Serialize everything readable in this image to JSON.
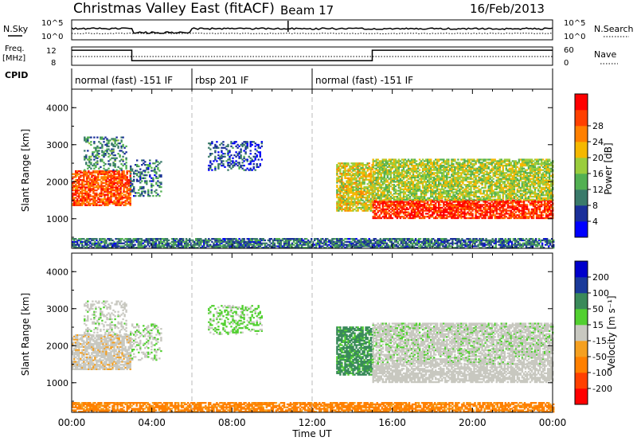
{
  "header": {
    "station": "Christmas Valley East (fitACF)",
    "beam": "Beam 17",
    "date": "16/Feb/2013"
  },
  "nsky_panel": {
    "left_label": "N.Sky",
    "right_label": "N.Search",
    "y_ticks_left": [
      "10^5",
      "10^0"
    ],
    "y_ticks_right": [
      "10^5",
      "10^0"
    ]
  },
  "freq_panel": {
    "left_label_line1": "Freq.",
    "left_label_line2": "[MHz]",
    "right_label": "Nave",
    "y_ticks_left": [
      "12",
      "8"
    ],
    "y_ticks_right": [
      "60",
      "0"
    ],
    "freq_steps": [
      {
        "start_hour": 0.0,
        "end_hour": 3.0,
        "freq_mhz": 12.5
      },
      {
        "start_hour": 3.0,
        "end_hour": 15.0,
        "freq_mhz": 9.0
      },
      {
        "start_hour": 15.0,
        "end_hour": 24.0,
        "freq_mhz": 12.5
      }
    ]
  },
  "cpid": {
    "label": "CPID",
    "segments": [
      {
        "start_hour": 0.0,
        "end_hour": 6.0,
        "text": "normal (fast) -151 IF"
      },
      {
        "start_hour": 6.0,
        "end_hour": 12.0,
        "text": "rbsp 201 IF"
      },
      {
        "start_hour": 12.0,
        "end_hour": 24.0,
        "text": "normal (fast) -151 IF"
      }
    ]
  },
  "power_panel": {
    "ylabel": "Slant Range [km]",
    "y_ticks": [
      "1000",
      "2000",
      "3000",
      "4000"
    ],
    "colorbar_label": "Power [dB]",
    "colorbar_ticks": [
      "4",
      "8",
      "12",
      "16",
      "20",
      "24",
      "28"
    ],
    "colors": [
      "#0000ff",
      "#1a2f9a",
      "#3a7a6a",
      "#52b052",
      "#9acd3c",
      "#f5b800",
      "#ff8000",
      "#ff4000",
      "#ff0000"
    ]
  },
  "velocity_panel": {
    "ylabel": "Slant Range [km]",
    "y_ticks": [
      "1000",
      "2000",
      "3000",
      "4000"
    ],
    "colorbar_label": "Velocity [m s⁻¹]",
    "colorbar_ticks": [
      "-200",
      "-100",
      "-50",
      "-15",
      "15",
      "50",
      "100",
      "200"
    ],
    "colors": [
      "#ff0000",
      "#ff4000",
      "#ff8000",
      "#f5a020",
      "#c8c8c0",
      "#52d030",
      "#3a8a5a",
      "#1a3a9a",
      "#0000cc"
    ]
  },
  "x_axis": {
    "label": "Time UT",
    "ticks": [
      "00:00",
      "04:00",
      "08:00",
      "12:00",
      "16:00",
      "20:00",
      "00:00"
    ]
  },
  "chart_data": {
    "type": "heatmap",
    "title": "Christmas Valley East (fitACF) Beam 17 16/Feb/2013",
    "xlabel": "Time UT",
    "ylabel": "Slant Range [km]",
    "xlim_hours": [
      0,
      24
    ],
    "ylim_km": [
      200,
      4500
    ],
    "series": [
      {
        "name": "Power [dB]",
        "crange": [
          0,
          32
        ]
      },
      {
        "name": "Velocity [m s⁻¹]",
        "crange": [
          -250,
          250
        ]
      }
    ],
    "echo_regions": [
      {
        "t0": 0.0,
        "t1": 2.9,
        "r0": 1350,
        "r1": 2300,
        "power_db": 26,
        "velocity": -5
      },
      {
        "t0": 0.6,
        "t1": 2.7,
        "r0": 2300,
        "r1": 3200,
        "power_db": 10,
        "velocity": 5
      },
      {
        "t0": 2.9,
        "t1": 4.5,
        "r0": 1600,
        "r1": 2600,
        "power_db": 8,
        "velocity": 10
      },
      {
        "t0": 6.8,
        "t1": 9.5,
        "r0": 2300,
        "r1": 3100,
        "power_db": 6,
        "velocity": 20
      },
      {
        "t0": 13.2,
        "t1": 15.0,
        "r0": 1200,
        "r1": 2500,
        "power_db": 18,
        "velocity": 60
      },
      {
        "t0": 15.0,
        "t1": 24.0,
        "r0": 1000,
        "r1": 1500,
        "power_db": 28,
        "velocity": 0
      },
      {
        "t0": 15.0,
        "t1": 24.0,
        "r0": 1500,
        "r1": 2600,
        "power_db": 16,
        "velocity": 5
      },
      {
        "t0": 0.0,
        "t1": 24.0,
        "r0": 200,
        "r1": 450,
        "power_db": 8,
        "velocity": -60
      }
    ]
  }
}
